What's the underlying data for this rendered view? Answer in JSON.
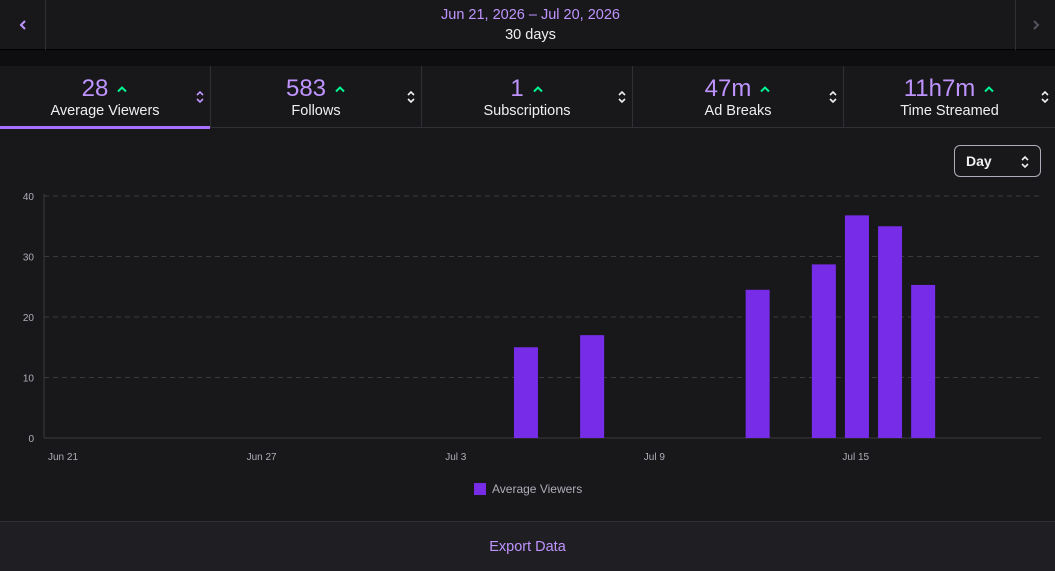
{
  "header": {
    "date_range": "Jun 21, 2026 – Jul 20, 2026",
    "period": "30 days",
    "prev_icon": "chevron-left-icon",
    "next_icon": "chevron-right-icon"
  },
  "metrics": [
    {
      "value": "28",
      "label": "Average Viewers",
      "trend": "up",
      "active": true
    },
    {
      "value": "583",
      "label": "Follows",
      "trend": "up",
      "active": false
    },
    {
      "value": "1",
      "label": "Subscriptions",
      "trend": "up",
      "active": false
    },
    {
      "value": "47m",
      "label": "Ad Breaks",
      "trend": "up",
      "active": false
    },
    {
      "value": "11h7m",
      "label": "Time Streamed",
      "trend": "up",
      "active": false
    }
  ],
  "granularity": {
    "selected": "Day"
  },
  "colors": {
    "accent": "#bf94ff",
    "bar": "#772ce8",
    "trend_up": "#00f593",
    "background": "#18181b"
  },
  "chart_data": {
    "type": "bar",
    "x_start": "Jun 21",
    "x": [
      "Jun 21",
      "Jun 22",
      "Jun 23",
      "Jun 24",
      "Jun 25",
      "Jun 26",
      "Jun 27",
      "Jun 28",
      "Jun 29",
      "Jun 30",
      "Jul 1",
      "Jul 2",
      "Jul 3",
      "Jul 4",
      "Jul 5",
      "Jul 6",
      "Jul 7",
      "Jul 8",
      "Jul 9",
      "Jul 10",
      "Jul 11",
      "Jul 12",
      "Jul 13",
      "Jul 14",
      "Jul 15",
      "Jul 16",
      "Jul 17",
      "Jul 18",
      "Jul 19",
      "Jul 20"
    ],
    "series": [
      {
        "name": "Average Viewers",
        "values": [
          0,
          0,
          0,
          0,
          0,
          0,
          0,
          0,
          0,
          0,
          0,
          0,
          0,
          0,
          15,
          0,
          17,
          0,
          0,
          0,
          0,
          24.5,
          0,
          28.7,
          36.8,
          35,
          25.3,
          0,
          0,
          0
        ]
      }
    ],
    "x_ticks": [
      "Jun 21",
      "Jun 27",
      "Jul 3",
      "Jul 9",
      "Jul 15"
    ],
    "y_ticks": [
      0,
      10,
      20,
      30,
      40
    ],
    "ylim": [
      0,
      40
    ],
    "grid": true,
    "legend": "bottom-center"
  },
  "footer": {
    "export_label": "Export Data"
  }
}
